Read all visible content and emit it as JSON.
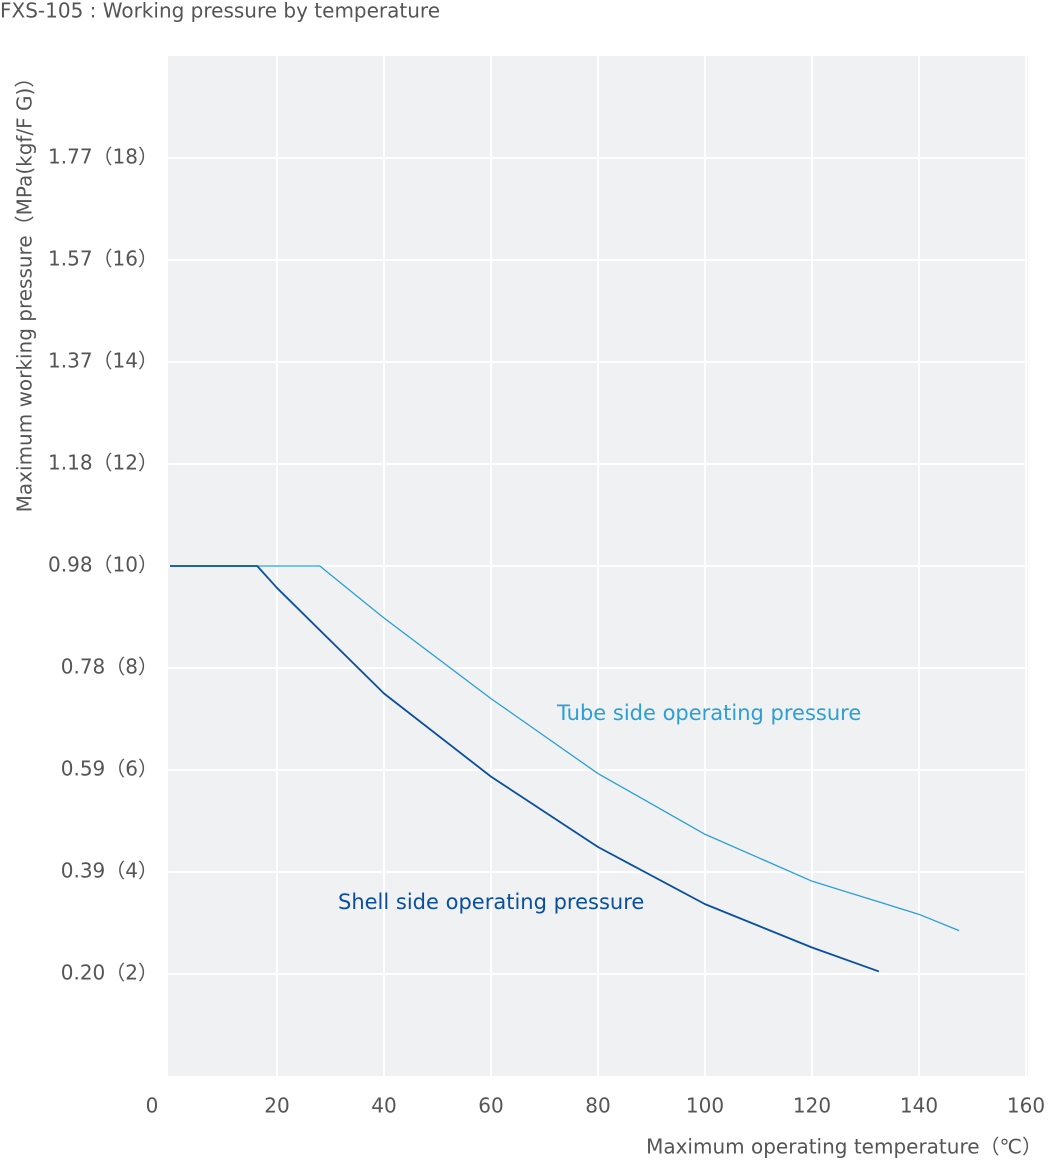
{
  "chart_data": {
    "type": "line",
    "title": "FXS-105 : Working pressure by temperature",
    "x_label": "Maximum operating temperature（℃）",
    "y_label": "Maximum working pressure（MPa(kgf/F G)）",
    "xlim": [
      0,
      160
    ],
    "xticks": [
      0,
      20,
      40,
      60,
      80,
      100,
      120,
      140,
      160
    ],
    "ylim": [
      0,
      20
    ],
    "yticks": [
      {
        "value": 2,
        "label": "0.20（2）"
      },
      {
        "value": 4,
        "label": "0.39（4）"
      },
      {
        "value": 6,
        "label": "0.59（6）"
      },
      {
        "value": 8,
        "label": "0.78（8）"
      },
      {
        "value": 10,
        "label": "0.98（10）"
      },
      {
        "value": 12,
        "label": "1.18（12）"
      },
      {
        "value": 14,
        "label": "1.37（14）"
      },
      {
        "value": 16,
        "label": "1.57（16）"
      },
      {
        "value": 18,
        "label": "1.77（18）"
      }
    ],
    "grid": true,
    "series": [
      {
        "name": "Tube side operating pressure",
        "color": "#2a9fd8",
        "x": [
          0,
          28,
          40,
          60,
          80,
          100,
          120,
          140,
          147.5
        ],
        "values": [
          10,
          10,
          8.98,
          7.4,
          5.93,
          4.74,
          3.82,
          3.17,
          2.85
        ]
      },
      {
        "name": "Shell side operating pressure",
        "color": "#0a4f9e",
        "x": [
          0,
          16.3,
          20,
          40,
          60,
          80,
          100,
          120,
          132.5
        ],
        "values": [
          10,
          10,
          9.57,
          7.5,
          5.87,
          4.49,
          3.37,
          2.52,
          2.05
        ]
      }
    ]
  }
}
